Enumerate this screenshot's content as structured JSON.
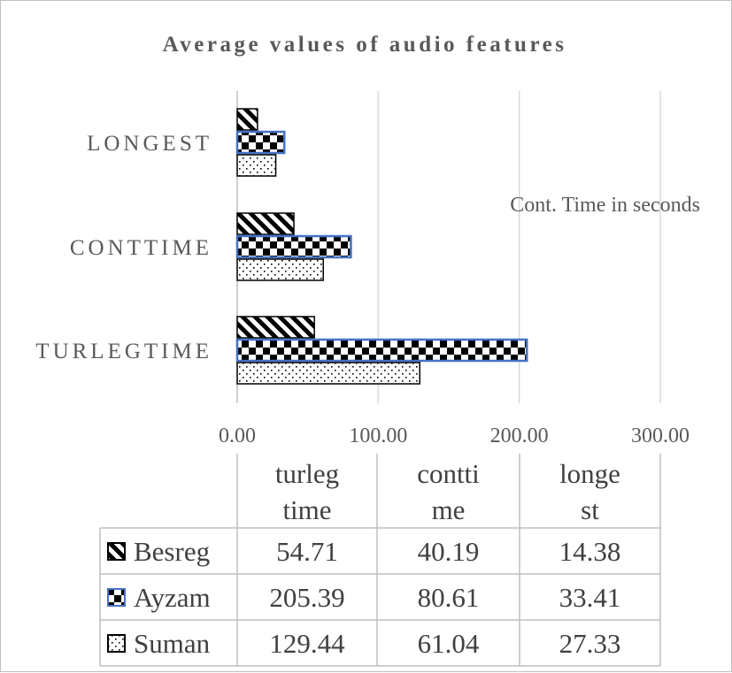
{
  "chart_data": {
    "type": "bar",
    "orientation": "horizontal",
    "title": "Average values of audio features",
    "annotation": "Cont. Time in seconds",
    "categories": [
      "TURLEGTIME",
      "CONTTIME",
      "LONGEST"
    ],
    "xlim": [
      0,
      300
    ],
    "x_ticks": [
      "0.00",
      "100.00",
      "200.00",
      "300.00"
    ],
    "grid": true,
    "legend": "data-table",
    "series": [
      {
        "name": "Besreg",
        "pattern": "diagonal-stripes",
        "values": [
          54.71,
          40.19,
          14.38
        ],
        "labels": [
          "54.71",
          "40.19",
          "14.38"
        ]
      },
      {
        "name": "Ayzam",
        "pattern": "checkerboard",
        "outline": "#4472c4",
        "values": [
          205.39,
          80.61,
          33.41
        ],
        "labels": [
          "205.39",
          "80.61",
          "33.41"
        ]
      },
      {
        "name": "Suman",
        "pattern": "dots",
        "values": [
          129.44,
          61.04,
          27.33
        ],
        "labels": [
          "129.44",
          "61.04",
          "27.33"
        ]
      }
    ],
    "table_headers": [
      [
        "turleg",
        "time"
      ],
      [
        "contti",
        "me"
      ],
      [
        "longe",
        "st"
      ]
    ]
  }
}
